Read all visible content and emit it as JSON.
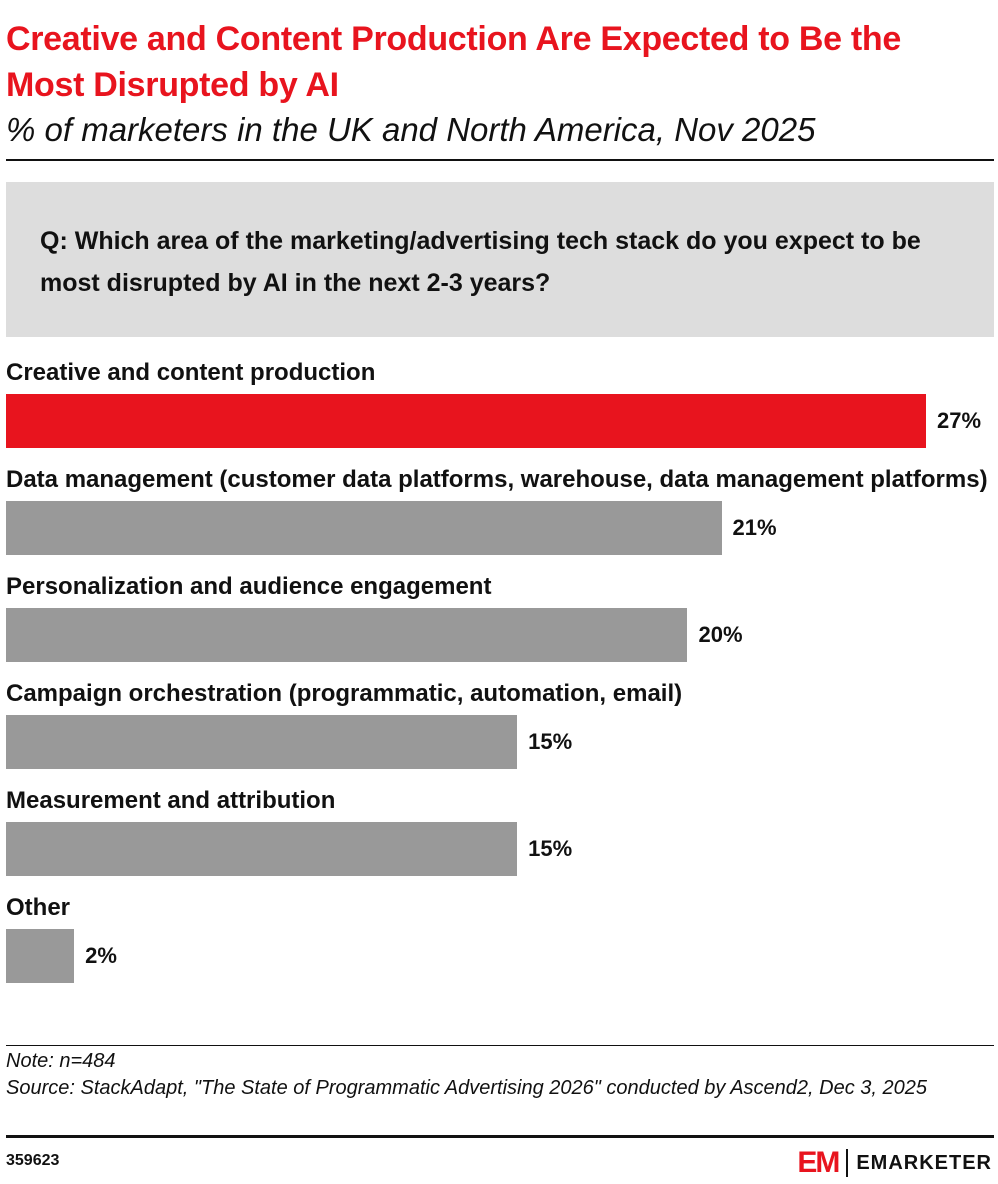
{
  "chart_data": {
    "type": "bar",
    "title": "Creative and Content Production Are Expected to Be the Most Disrupted by AI",
    "subtitle": "% of marketers in the UK and North America, Nov 2025",
    "question": "Q: Which area of the marketing/advertising tech stack do you expect to be most disrupted by AI in the next 2-3 years?",
    "categories": [
      "Creative and content production",
      "Data management (customer data platforms, warehouse, data management platforms)",
      "Personalization and audience engagement",
      "Campaign orchestration (programmatic, automation, email)",
      "Measurement and attribution",
      "Other"
    ],
    "values": [
      27,
      21,
      20,
      15,
      15,
      2
    ],
    "value_labels": [
      "27%",
      "21%",
      "20%",
      "15%",
      "15%",
      "2%"
    ],
    "colors": [
      "#e8141e",
      "#999999",
      "#999999",
      "#999999",
      "#999999",
      "#999999"
    ],
    "note": "Note: n=484",
    "source": "Source: StackAdapt, \"The State of Programmatic Advertising 2026\" conducted by Ascend2, Dec 3, 2025",
    "chart_id": "359623",
    "logo_mark": "EM",
    "logo_name": "EMARKETER"
  }
}
